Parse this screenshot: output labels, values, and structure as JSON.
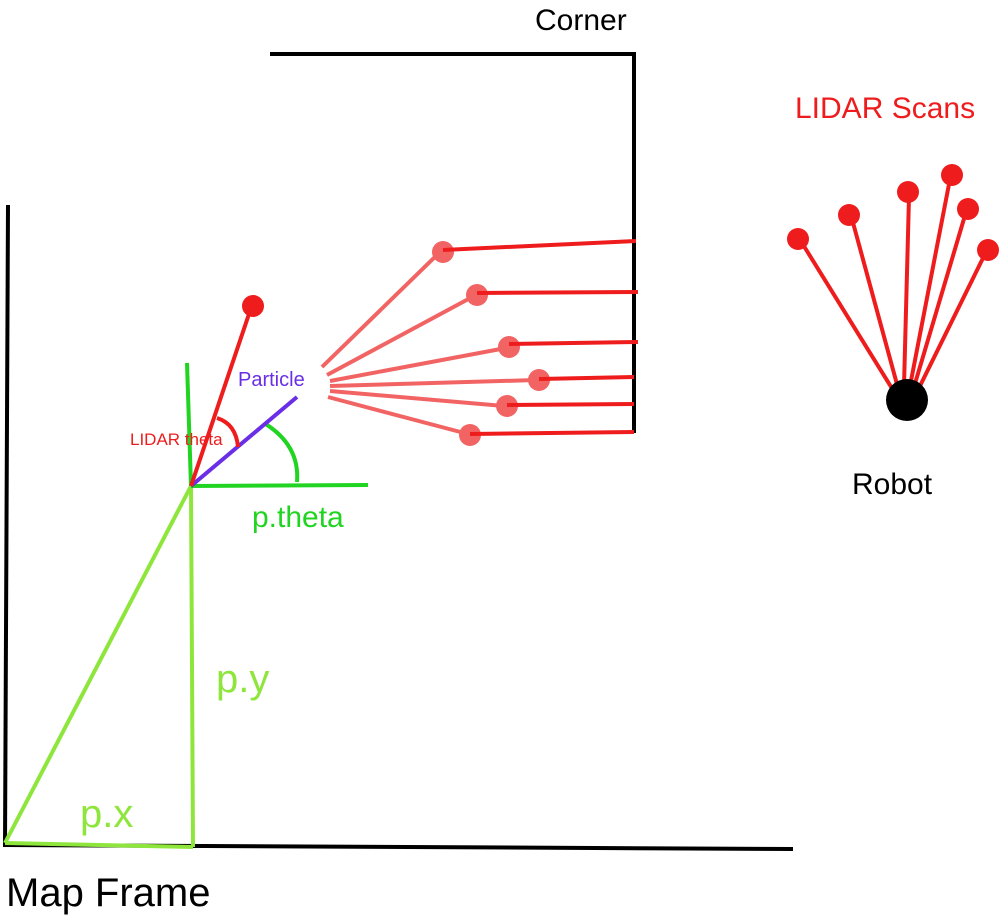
{
  "labels": {
    "corner": "Corner",
    "lidar_scans": "LIDAR Scans",
    "robot": "Robot",
    "particle": "Particle",
    "lidar_theta": "LIDAR theta",
    "p_theta": "p.theta",
    "p_y": "p.y",
    "p_x": "p.x",
    "map_frame": "Map Frame"
  },
  "colors": {
    "wall": "#000000",
    "lidar_red": "#ee1c1c",
    "particle_ray": "#f26464",
    "frame_green": "#8ee63c",
    "angle_green": "#22d422",
    "particle_heading": "#6a2ee6",
    "robot": "#000000"
  }
}
